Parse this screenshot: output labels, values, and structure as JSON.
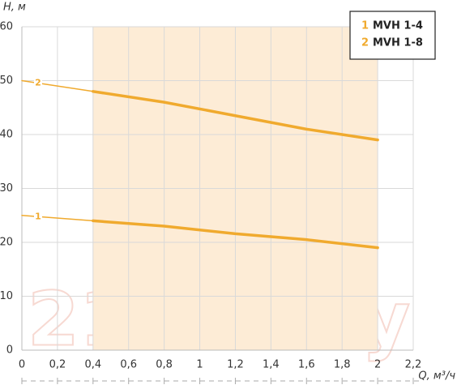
{
  "chart_data": {
    "type": "line",
    "y_axis_label": "H, м",
    "x_axis_label": "Q, м³/ч",
    "x": [
      0,
      0.4,
      0.8,
      1.2,
      1.6,
      2
    ],
    "series": [
      {
        "name": "MVH 1-4",
        "label": "1",
        "color": "#f0aa2e",
        "values": [
          25,
          24,
          23,
          21.6,
          20.5,
          19
        ]
      },
      {
        "name": "MVH 1-8",
        "label": "2",
        "color": "#f0aa2e",
        "values": [
          50,
          48,
          46,
          43.5,
          41,
          39
        ]
      }
    ],
    "operating_range": [
      0.4,
      2
    ],
    "operating_range_color": "#fdecd6",
    "xlim": [
      0,
      2.2
    ],
    "xticks": [
      0,
      {
        "value": 0.2,
        "label": "0,2"
      },
      {
        "value": 0.4,
        "label": "0,4"
      },
      {
        "value": 0.6,
        "label": "0,6"
      },
      {
        "value": 0.8,
        "label": "0,8"
      },
      1,
      {
        "value": 1.2,
        "label": "1,2"
      },
      {
        "value": 1.4,
        "label": "1,4"
      },
      {
        "value": 1.6,
        "label": "1,6"
      },
      {
        "value": 1.8,
        "label": "1,8"
      },
      2,
      {
        "value": 2.2,
        "label": "2,2"
      }
    ],
    "ylim": [
      0,
      60
    ],
    "yticks": [
      0,
      10,
      20,
      30,
      40,
      50,
      60
    ],
    "grid": true,
    "legend_position": "top-right",
    "watermark": "21vek.by"
  }
}
